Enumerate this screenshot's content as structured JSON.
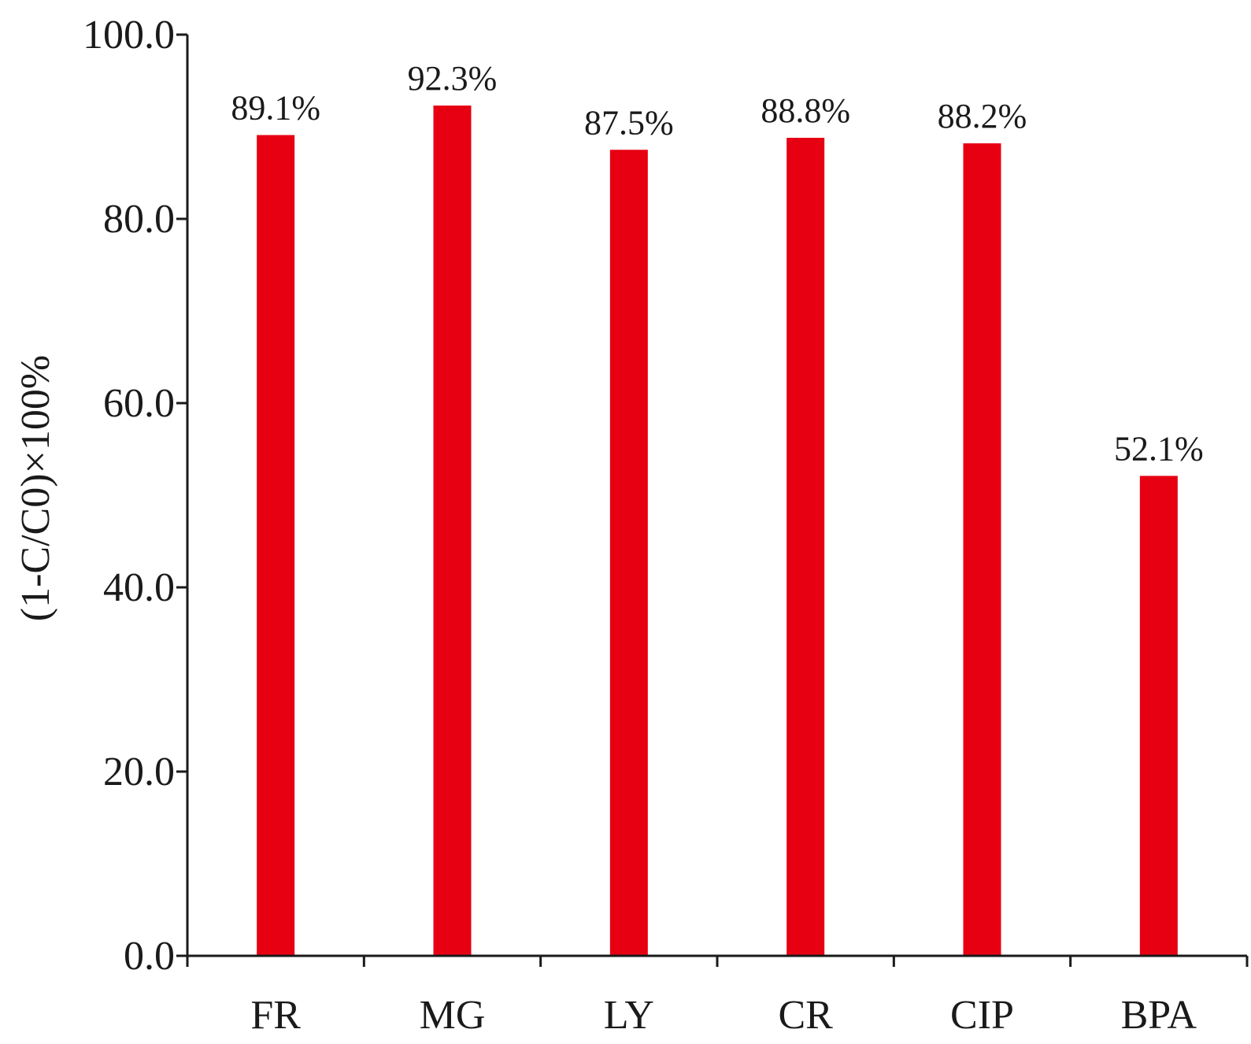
{
  "chart_data": {
    "type": "bar",
    "categories": [
      "FR",
      "MG",
      "LY",
      "CR",
      "CIP",
      "BPA"
    ],
    "values": [
      89.1,
      92.3,
      87.5,
      88.8,
      88.2,
      52.1
    ],
    "data_labels": [
      "89.1%",
      "92.3%",
      "87.5%",
      "88.8%",
      "88.2%",
      "52.1%"
    ],
    "title": "",
    "xlabel": "",
    "ylabel": "(1-C/C0)×100%",
    "ylim": [
      0,
      100
    ],
    "yticks": [
      "0.0",
      "20.0",
      "40.0",
      "60.0",
      "80.0",
      "100.0"
    ],
    "ytick_values": [
      0,
      20,
      40,
      60,
      80,
      100
    ],
    "grid": false,
    "legend": "none",
    "bar_color": "#e60012",
    "axis_color": "#1a1a1a"
  }
}
